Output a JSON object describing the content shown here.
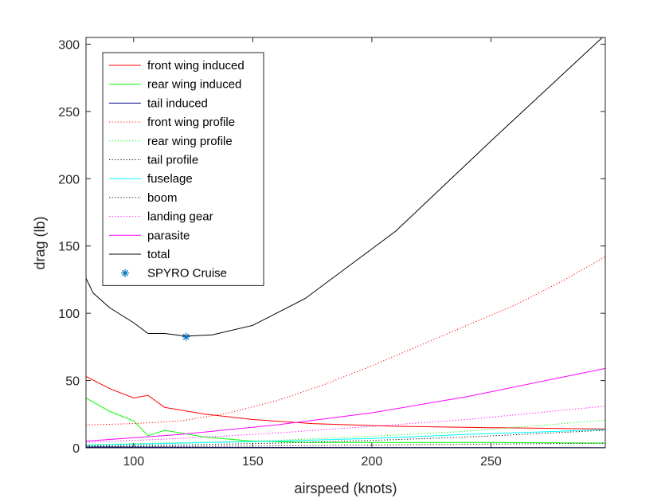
{
  "chart_data": {
    "type": "line",
    "title": "",
    "xlabel": "airspeed (knots)",
    "ylabel": "drag (lb)",
    "xlim": [
      80,
      298
    ],
    "ylim": [
      0,
      305
    ],
    "xticks": [
      100,
      150,
      200,
      250
    ],
    "yticks": [
      0,
      50,
      100,
      150,
      200,
      250,
      300
    ],
    "grid": false,
    "legend_position": "top-left",
    "series": [
      {
        "name": "front wing induced",
        "color": "#ff0000",
        "dash": "solid",
        "x": [
          80,
          90,
          100,
          106,
          113,
          130,
          150,
          175,
          210,
          250,
          298
        ],
        "y": [
          53,
          44,
          37,
          39,
          30,
          25,
          21,
          18,
          16,
          15,
          14
        ]
      },
      {
        "name": "rear wing induced",
        "color": "#00ff00",
        "dash": "solid",
        "x": [
          80,
          90,
          100,
          106,
          113,
          130,
          150,
          175,
          210,
          250,
          298
        ],
        "y": [
          37,
          27,
          20,
          9,
          13,
          8,
          5,
          4,
          4,
          4,
          3.5
        ]
      },
      {
        "name": "tail induced",
        "color": "#00008b",
        "dash": "solid",
        "x": [
          80,
          150,
          298
        ],
        "y": [
          0.6,
          0.3,
          0.15
        ]
      },
      {
        "name": "front wing profile",
        "color": "#ff0000",
        "dash": "dotted",
        "x": [
          80,
          100,
          120,
          140,
          160,
          180,
          200,
          220,
          240,
          260,
          280,
          298
        ],
        "y": [
          17,
          18,
          20,
          26,
          35,
          47,
          61,
          76,
          91,
          106,
          124,
          142
        ]
      },
      {
        "name": "rear wing profile",
        "color": "#00ff00",
        "dash": "dotted",
        "x": [
          80,
          120,
          160,
          200,
          240,
          298
        ],
        "y": [
          2.5,
          3.8,
          5.5,
          8.6,
          12.4,
          20.5
        ]
      },
      {
        "name": "tail profile",
        "color": "#000000",
        "dash": "dotted",
        "x": [
          80,
          120,
          160,
          200,
          240,
          298
        ],
        "y": [
          1.5,
          2.2,
          3.5,
          5.5,
          8,
          13
        ]
      },
      {
        "name": "fuselage",
        "color": "#00ffff",
        "dash": "solid",
        "x": [
          80,
          120,
          160,
          200,
          240,
          298
        ],
        "y": [
          2,
          3.5,
          5,
          7,
          10,
          13.5
        ]
      },
      {
        "name": "boom",
        "color": "#000000",
        "dash": "dotted",
        "x": [
          80,
          150,
          298
        ],
        "y": [
          0.8,
          1.3,
          3.5
        ]
      },
      {
        "name": "landing gear",
        "color": "#ff00ff",
        "dash": "dotted",
        "x": [
          80,
          120,
          160,
          200,
          240,
          298
        ],
        "y": [
          4,
          7,
          11,
          16,
          21,
          31
        ]
      },
      {
        "name": "parasite",
        "color": "#ff00ff",
        "dash": "solid",
        "x": [
          80,
          120,
          160,
          200,
          240,
          298
        ],
        "y": [
          5,
          10,
          17,
          26,
          38,
          59
        ]
      },
      {
        "name": "total",
        "color": "#000000",
        "dash": "solid",
        "x": [
          80,
          83,
          90,
          100,
          106,
          113,
          122,
          133,
          150,
          172,
          210,
          250,
          298
        ],
        "y": [
          126,
          115,
          104,
          93,
          85,
          85,
          83,
          84,
          91,
          111,
          161,
          228,
          307
        ]
      }
    ],
    "markers": [
      {
        "name": "SPYRO Cruise",
        "color": "#0072bd",
        "symbol": "*",
        "x": 122,
        "y": 82.5
      }
    ]
  }
}
